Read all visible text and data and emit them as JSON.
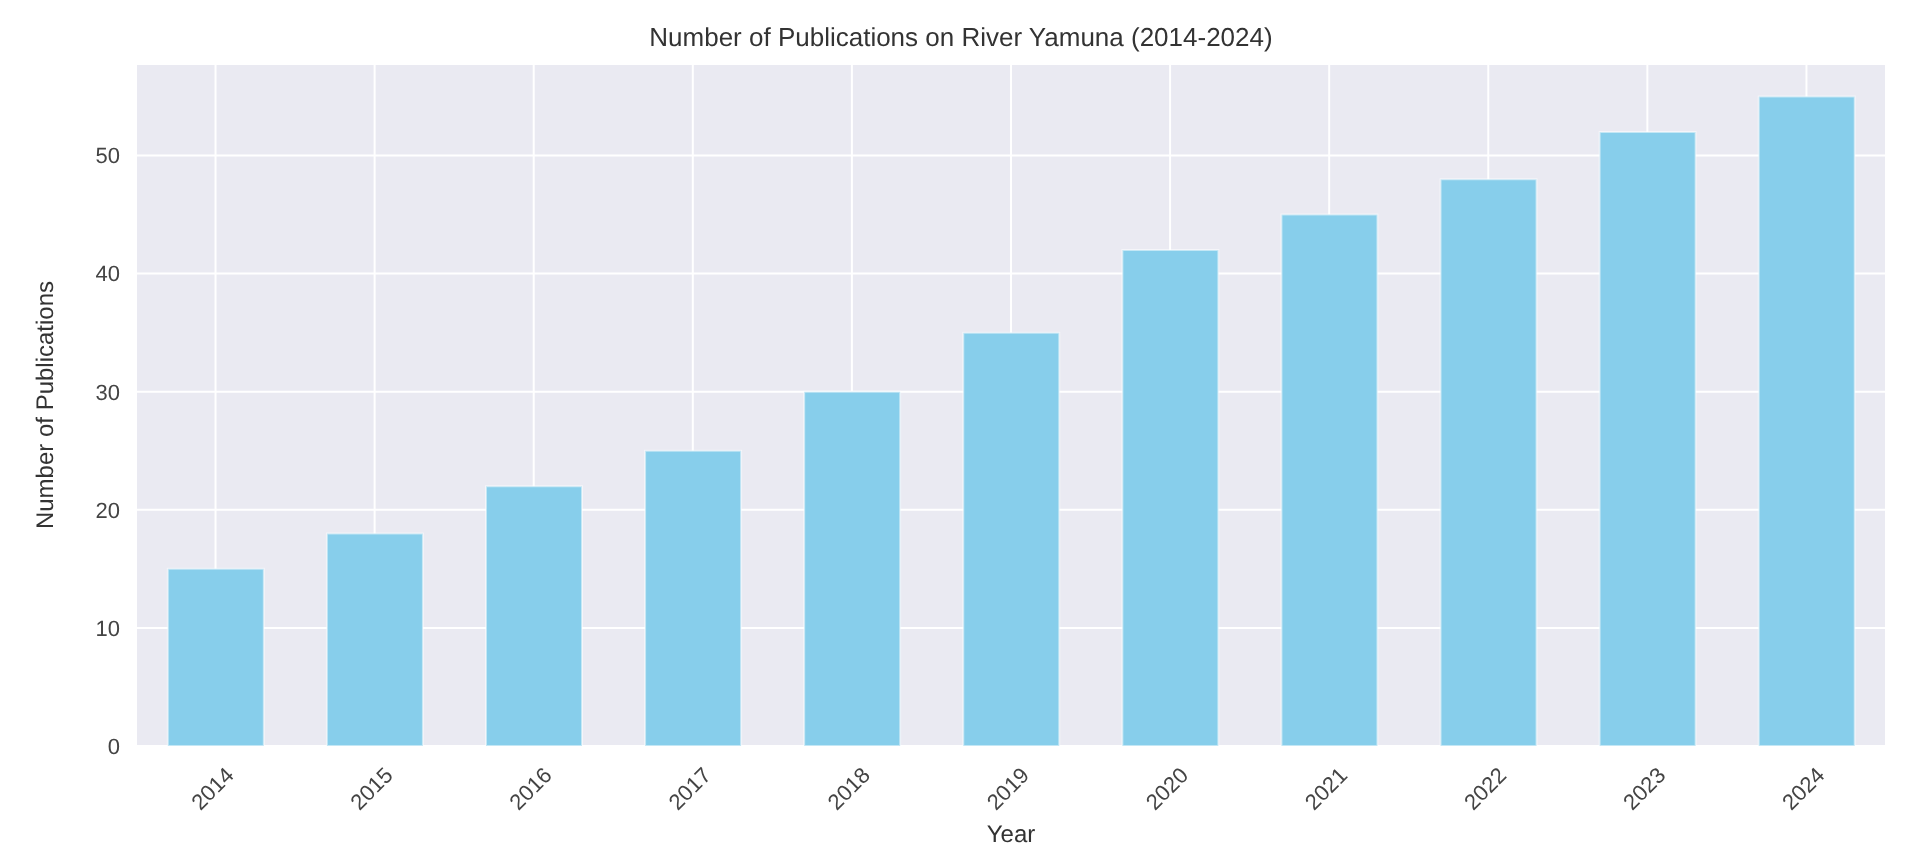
{
  "chart_data": {
    "type": "bar",
    "title": "Number of Publications on River Yamuna (2014-2024)",
    "xlabel": "Year",
    "ylabel": "Number of Publications",
    "categories": [
      "2014",
      "2015",
      "2016",
      "2017",
      "2018",
      "2019",
      "2020",
      "2021",
      "2022",
      "2023",
      "2024"
    ],
    "values": [
      15,
      18,
      22,
      25,
      30,
      35,
      42,
      45,
      48,
      52,
      55
    ],
    "color": "#87ceeb",
    "ylim": [
      0,
      57.75
    ],
    "yticks": [
      0,
      10,
      20,
      30,
      40,
      50
    ],
    "grid": true
  }
}
